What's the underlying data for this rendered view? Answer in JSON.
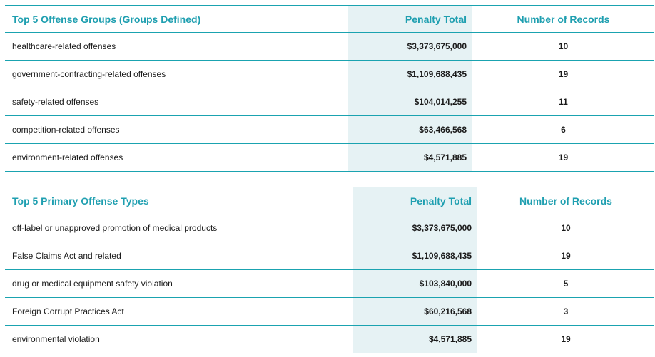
{
  "offense_groups": {
    "header": {
      "title": "Top 5 Offense Groups",
      "link_open": "(",
      "link_label": "Groups Defined",
      "link_close": ")",
      "penalty_label": "Penalty Total",
      "records_label": "Number of Records"
    },
    "rows": [
      {
        "name": "healthcare-related offenses",
        "penalty": "$3,373,675,000",
        "records": "10"
      },
      {
        "name": "government-contracting-related offenses",
        "penalty": "$1,109,688,435",
        "records": "19"
      },
      {
        "name": "safety-related offenses",
        "penalty": "$104,014,255",
        "records": "11"
      },
      {
        "name": "competition-related offenses",
        "penalty": "$63,466,568",
        "records": "6"
      },
      {
        "name": "environment-related offenses",
        "penalty": "$4,571,885",
        "records": "19"
      }
    ]
  },
  "primary_offense_types": {
    "header": {
      "title": "Top 5 Primary Offense Types",
      "penalty_label": "Penalty Total",
      "records_label": "Number of Records"
    },
    "rows": [
      {
        "name": "off-label or unapproved promotion of medical products",
        "penalty": "$3,373,675,000",
        "records": "10"
      },
      {
        "name": "False Claims Act and related",
        "penalty": "$1,109,688,435",
        "records": "19"
      },
      {
        "name": "drug or medical equipment safety violation",
        "penalty": "$103,840,000",
        "records": "5"
      },
      {
        "name": "Foreign Corrupt Practices Act",
        "penalty": "$60,216,568",
        "records": "3"
      },
      {
        "name": "environmental violation",
        "penalty": "$4,571,885",
        "records": "19"
      }
    ]
  },
  "colors": {
    "accent": "#1f9fb0",
    "rule": "#1aa3b0",
    "penalty_column_bg": "#e6f2f4"
  }
}
